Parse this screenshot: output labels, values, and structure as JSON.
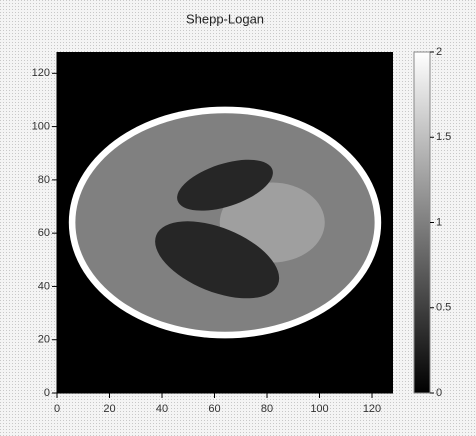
{
  "chart_data": {
    "type": "image",
    "title": "Shepp-Logan",
    "xlim": [
      0,
      128
    ],
    "ylim": [
      0,
      128
    ],
    "xticks": [
      0,
      20,
      40,
      60,
      80,
      100,
      120
    ],
    "yticks": [
      0,
      20,
      40,
      60,
      80,
      100,
      120
    ],
    "colormap": "gray",
    "clim": [
      0,
      2
    ],
    "cticks": [
      0,
      0.5,
      1,
      1.5,
      2
    ],
    "background_value": 0,
    "shapes": [
      {
        "x": 64,
        "y": 64,
        "rx": 59.5,
        "ry": 43.5,
        "angle": 0,
        "value": 2
      },
      {
        "x": 64,
        "y": 64,
        "rx": 57,
        "ry": 41,
        "angle": 0,
        "value": 1
      },
      {
        "x": 82,
        "y": 64,
        "rx": 20,
        "ry": 15,
        "angle": 0,
        "value": 1.25
      },
      {
        "x": 64,
        "y": 78,
        "rx": 19,
        "ry": 8,
        "angle": 18,
        "value": 0.3
      },
      {
        "x": 61,
        "y": 50,
        "rx": 25,
        "ry": 12,
        "angle": -22,
        "value": 0.3
      }
    ]
  }
}
